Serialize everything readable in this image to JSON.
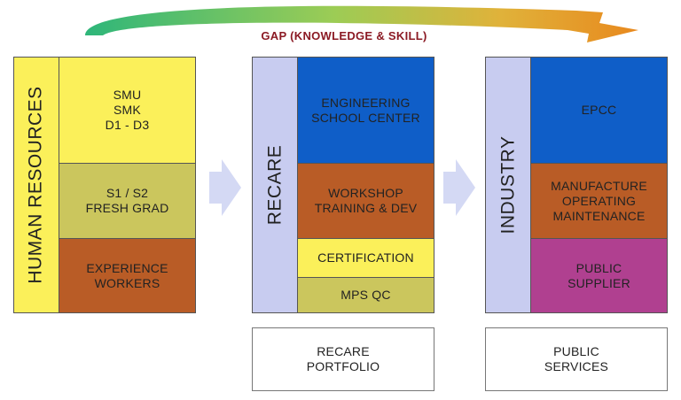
{
  "gap_label": "GAP (KNOWLEDGE & SKILL)",
  "columns": {
    "human_resources": {
      "title": "HUMAN RESOURCES",
      "blocks": [
        {
          "lines": [
            "SMU",
            "SMK",
            "D1 - D3"
          ]
        },
        {
          "lines": [
            "S1 / S2",
            "FRESH GRAD"
          ]
        },
        {
          "lines": [
            "EXPERIENCE",
            "WORKERS"
          ]
        }
      ]
    },
    "recare": {
      "title": "RECARE",
      "blocks": [
        {
          "lines": [
            "ENGINEERING",
            "SCHOOL CENTER"
          ]
        },
        {
          "lines": [
            "WORKSHOP",
            "TRAINING & DEV"
          ]
        },
        {
          "lines": [
            "CERTIFICATION"
          ]
        },
        {
          "lines": [
            "MPS QC"
          ]
        }
      ],
      "footer": {
        "lines": [
          "RECARE",
          "PORTFOLIO"
        ]
      }
    },
    "industry": {
      "title": "INDUSTRY",
      "blocks": [
        {
          "lines": [
            "EPCC"
          ]
        },
        {
          "lines": [
            "MANUFACTURE",
            "OPERATING",
            "MAINTENANCE"
          ]
        },
        {
          "lines": [
            "PUBLIC",
            "SUPPLIER"
          ]
        }
      ],
      "footer": {
        "lines": [
          "PUBLIC",
          "SERVICES"
        ]
      }
    }
  },
  "colors": {
    "yellow": "#fbf05a",
    "olive": "#cbc65d",
    "rust": "#b95c26",
    "blue": "#0f5ec8",
    "magenta": "#b04090",
    "lavender": "#c8ccf0",
    "arrow_light": "#d4d9f4",
    "gap_text": "#8b1a24"
  }
}
